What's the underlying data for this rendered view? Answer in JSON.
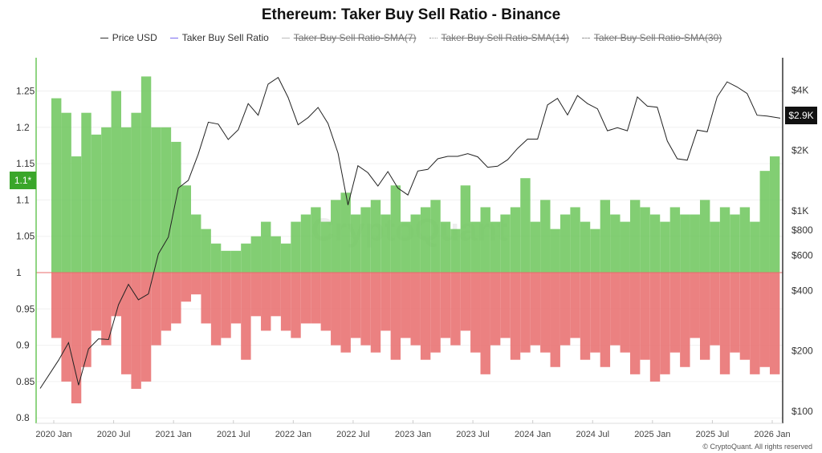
{
  "chart_data": {
    "type": "bar+line",
    "title": "Ethereum: Taker Buy Sell Ratio - Binance",
    "legend": [
      {
        "name": "Price USD",
        "color": "#333333",
        "active": true
      },
      {
        "name": "Taker Buy Sell Ratio",
        "color": "#7b6cf0",
        "active": true
      },
      {
        "name": "Taker Buy Sell Ratio-SMA(7)",
        "active": false
      },
      {
        "name": "Taker Buy Sell Ratio-SMA(14)",
        "active": false
      },
      {
        "name": "Taker Buy Sell Ratio-SMA(30)",
        "active": false
      }
    ],
    "legend_position": "top",
    "colors": {
      "above": "#6cc55a",
      "below": "#e86b6b",
      "price": "#222222",
      "highlight": "#3aa62a"
    },
    "left_axis": {
      "ticks": [
        "1.25",
        "1.2",
        "1.15",
        "1.1",
        "1.05",
        "1",
        "0.95",
        "0.9",
        "0.85",
        "0.8"
      ],
      "range": [
        0.8,
        1.27
      ],
      "baseline": 1
    },
    "right_axis": {
      "scale": "log",
      "ticks": [
        {
          "label": "$4K",
          "v": 4000
        },
        {
          "label": "$2K",
          "v": 2000
        },
        {
          "label": "$1K",
          "v": 1000
        },
        {
          "label": "$800",
          "v": 800
        },
        {
          "label": "$600",
          "v": 600
        },
        {
          "label": "$400",
          "v": 400
        },
        {
          "label": "$200",
          "v": 200
        },
        {
          "label": "$100",
          "v": 100
        }
      ]
    },
    "x_ticks": [
      "2020 Jan",
      "2020 Jul",
      "2021 Jan",
      "2021 Jul",
      "2022 Jan",
      "2022 Jul",
      "2023 Jan",
      "2023 Jul",
      "2024 Jan",
      "2024 Jul",
      "2025 Jan",
      "2025 Jul",
      "2026 Jan"
    ],
    "current_ratio_label": "1.1*",
    "current_price_label": "$2.9K",
    "ratio_months_start": "2020-01",
    "ratio_max": [
      1.24,
      1.22,
      1.16,
      1.22,
      1.19,
      1.2,
      1.25,
      1.2,
      1.22,
      1.27,
      1.2,
      1.2,
      1.18,
      1.12,
      1.08,
      1.06,
      1.04,
      1.03,
      1.03,
      1.04,
      1.05,
      1.07,
      1.05,
      1.04,
      1.07,
      1.08,
      1.09,
      1.07,
      1.1,
      1.11,
      1.08,
      1.09,
      1.1,
      1.08,
      1.12,
      1.07,
      1.08,
      1.09,
      1.1,
      1.07,
      1.06,
      1.12,
      1.07,
      1.09,
      1.07,
      1.08,
      1.09,
      1.13,
      1.07,
      1.1,
      1.06,
      1.08,
      1.09,
      1.07,
      1.06,
      1.1,
      1.08,
      1.07,
      1.1,
      1.09,
      1.08,
      1.07,
      1.09,
      1.08,
      1.08,
      1.1,
      1.07,
      1.09,
      1.08,
      1.09,
      1.07,
      1.14,
      1.16
    ],
    "ratio_min": [
      0.91,
      0.85,
      0.82,
      0.87,
      0.92,
      0.9,
      0.94,
      0.86,
      0.84,
      0.85,
      0.9,
      0.92,
      0.93,
      0.96,
      0.97,
      0.93,
      0.9,
      0.91,
      0.93,
      0.88,
      0.94,
      0.92,
      0.94,
      0.92,
      0.91,
      0.93,
      0.93,
      0.92,
      0.9,
      0.89,
      0.91,
      0.9,
      0.89,
      0.92,
      0.88,
      0.91,
      0.9,
      0.88,
      0.89,
      0.91,
      0.9,
      0.92,
      0.89,
      0.86,
      0.9,
      0.91,
      0.88,
      0.89,
      0.9,
      0.89,
      0.87,
      0.9,
      0.91,
      0.88,
      0.89,
      0.87,
      0.9,
      0.89,
      0.86,
      0.88,
      0.85,
      0.86,
      0.89,
      0.87,
      0.91,
      0.88,
      0.9,
      0.86,
      0.89,
      0.88,
      0.86,
      0.87,
      0.86
    ],
    "price_months_start": "2019-12",
    "price_usd": [
      130,
      180,
      220,
      135,
      205,
      230,
      228,
      340,
      430,
      360,
      385,
      610,
      740,
      1300,
      1420,
      1920,
      2770,
      2710,
      2270,
      2540,
      3430,
      3000,
      4290,
      4630,
      3680,
      2690,
      2920,
      3280,
      2730,
      1940,
      1070,
      1680,
      1550,
      1330,
      1570,
      1300,
      1200,
      1580,
      1610,
      1820,
      1870,
      1870,
      1930,
      1860,
      1650,
      1670,
      1800,
      2050,
      2280,
      2280,
      3380,
      3640,
      3010,
      3760,
      3430,
      3230,
      2510,
      2600,
      2510,
      3700,
      3330,
      3290,
      2230,
      1820,
      1790,
      2530,
      2480,
      3700,
      4400,
      4150,
      3850,
      3000,
      2970,
      2900
    ],
    "watermark": "CryptoQuant",
    "copyright": "© CryptoQuant. All rights reserved"
  }
}
